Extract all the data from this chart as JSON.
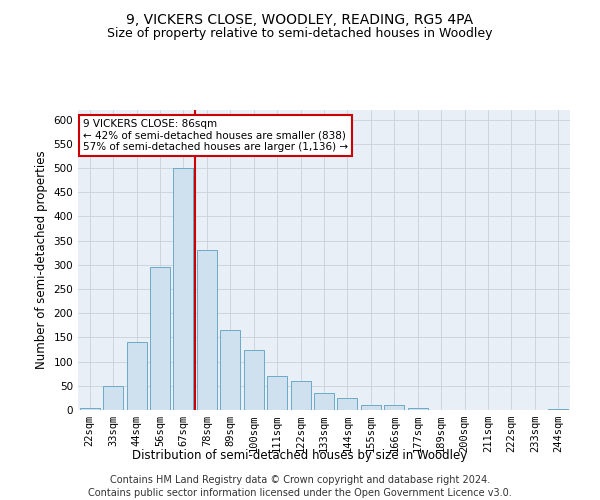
{
  "title": "9, VICKERS CLOSE, WOODLEY, READING, RG5 4PA",
  "subtitle": "Size of property relative to semi-detached houses in Woodley",
  "xlabel": "Distribution of semi-detached houses by size in Woodley",
  "ylabel": "Number of semi-detached properties",
  "categories": [
    "22sqm",
    "33sqm",
    "44sqm",
    "56sqm",
    "67sqm",
    "78sqm",
    "89sqm",
    "100sqm",
    "111sqm",
    "122sqm",
    "133sqm",
    "144sqm",
    "155sqm",
    "166sqm",
    "177sqm",
    "189sqm",
    "200sqm",
    "211sqm",
    "222sqm",
    "233sqm",
    "244sqm"
  ],
  "values": [
    5,
    50,
    140,
    295,
    500,
    330,
    165,
    125,
    70,
    60,
    35,
    25,
    10,
    10,
    5,
    0,
    0,
    0,
    0,
    0,
    3
  ],
  "bar_color": "#cfe0ee",
  "bar_edge_color": "#6aaac8",
  "vline_index": 5,
  "vline_color": "#cc0000",
  "annotation_text": "9 VICKERS CLOSE: 86sqm\n← 42% of semi-detached houses are smaller (838)\n57% of semi-detached houses are larger (1,136) →",
  "annotation_box_color": "#ffffff",
  "annotation_box_edge": "#cc0000",
  "footer_line1": "Contains HM Land Registry data © Crown copyright and database right 2024.",
  "footer_line2": "Contains public sector information licensed under the Open Government Licence v3.0.",
  "ylim": [
    0,
    620
  ],
  "yticks": [
    0,
    50,
    100,
    150,
    200,
    250,
    300,
    350,
    400,
    450,
    500,
    550,
    600
  ],
  "background_color": "#ffffff",
  "plot_bg_color": "#e8eff7",
  "grid_color": "#c8d0da",
  "title_fontsize": 10,
  "subtitle_fontsize": 9,
  "axis_label_fontsize": 8.5,
  "tick_fontsize": 7.5,
  "footer_fontsize": 7
}
